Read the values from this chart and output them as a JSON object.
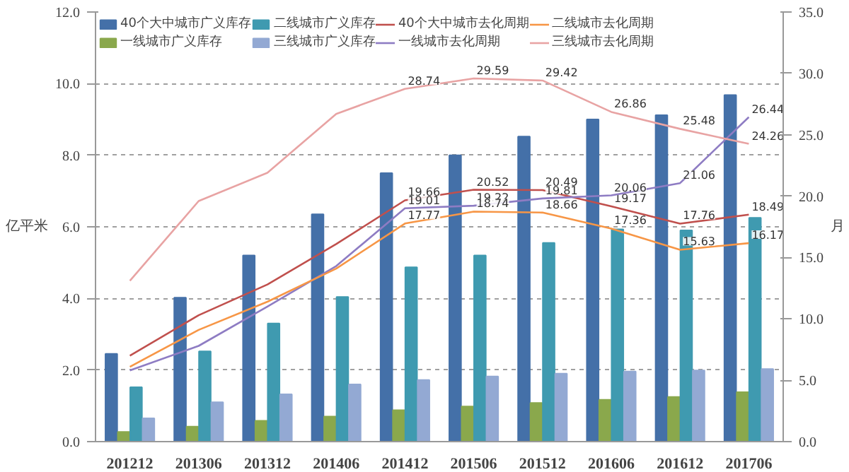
{
  "chart_data": {
    "type": "bar",
    "ylabel": "亿平米",
    "y2label": "月",
    "categories": [
      "201212",
      "201306",
      "201312",
      "201406",
      "201412",
      "201506",
      "201512",
      "201606",
      "201612",
      "201706"
    ],
    "ylim": [
      0,
      12
    ],
    "yticks": [
      {
        "value": 0,
        "label": "0.0"
      },
      {
        "value": 2,
        "label": "2.0"
      },
      {
        "value": 4,
        "label": "4.0"
      },
      {
        "value": 6,
        "label": "6.0"
      },
      {
        "value": 8,
        "label": "8.0"
      },
      {
        "value": 10,
        "label": "10.0"
      },
      {
        "value": 12,
        "label": "12.0"
      }
    ],
    "y2lim": [
      0,
      35
    ],
    "y2ticks": [
      {
        "value": 0,
        "label": "0.0"
      },
      {
        "value": 5,
        "label": "5.0"
      },
      {
        "value": 10,
        "label": "10.0"
      },
      {
        "value": 15,
        "label": "15.0"
      },
      {
        "value": 20,
        "label": "20.0"
      },
      {
        "value": 25,
        "label": "25.0"
      },
      {
        "value": 30,
        "label": "30.0"
      },
      {
        "value": 35,
        "label": "35.0"
      }
    ],
    "grid": "y",
    "legend": "top",
    "series": [
      {
        "name": "40个大中城市广义库存",
        "color": "#4470a8",
        "values": [
          2.45,
          4.02,
          5.2,
          6.35,
          7.5,
          8.0,
          8.52,
          9.0,
          9.12,
          9.68
        ]
      },
      {
        "name": "一线城市广义库存",
        "color": "#8aa84c",
        "values": [
          0.27,
          0.42,
          0.58,
          0.7,
          0.88,
          0.98,
          1.08,
          1.17,
          1.25,
          1.38
        ]
      },
      {
        "name": "二线城市广义库存",
        "color": "#3f9ab0",
        "values": [
          1.52,
          2.52,
          3.3,
          4.04,
          4.87,
          5.2,
          5.55,
          5.93,
          5.9,
          6.25
        ]
      },
      {
        "name": "三线城市广义库存",
        "color": "#93a9d3",
        "values": [
          0.65,
          1.1,
          1.32,
          1.6,
          1.72,
          1.82,
          1.9,
          1.96,
          1.99,
          2.03
        ]
      },
      {
        "name": "40个大中城市去化周期",
        "type": "line",
        "axis": "y2",
        "color": "#c0504d",
        "values": [
          7.0,
          10.3,
          12.8,
          16.1,
          19.66,
          20.52,
          20.49,
          19.17,
          17.76,
          18.49
        ],
        "value_labels": [
          null,
          null,
          null,
          null,
          "19.66",
          "20.52",
          "20.49",
          "19.17",
          "17.76",
          "18.49"
        ]
      },
      {
        "name": "一线城市去化周期",
        "type": "line",
        "axis": "y2",
        "color": "#8e7cc3",
        "values": [
          5.8,
          7.8,
          11.0,
          14.3,
          19.01,
          19.22,
          19.81,
          20.06,
          21.06,
          26.44
        ],
        "value_labels": [
          null,
          null,
          null,
          null,
          "19.01",
          "19.22",
          "19.81",
          "20.06",
          "21.06",
          "26.44"
        ]
      },
      {
        "name": "二线城市去化周期",
        "type": "line",
        "axis": "y2",
        "color": "#f79646",
        "values": [
          6.1,
          9.1,
          11.4,
          14.1,
          17.77,
          18.74,
          18.66,
          17.36,
          15.63,
          16.17
        ],
        "value_labels": [
          null,
          null,
          null,
          null,
          "17.77",
          "18.74",
          "18.66",
          "17.36",
          "15.63",
          "16.17"
        ]
      },
      {
        "name": "三线城市去化周期",
        "type": "line",
        "axis": "y2",
        "color": "#e8a3a3",
        "values": [
          13.1,
          19.6,
          21.9,
          26.7,
          28.74,
          29.59,
          29.42,
          26.86,
          25.48,
          24.26
        ],
        "value_labels": [
          null,
          null,
          null,
          null,
          "28.74",
          "29.59",
          "29.42",
          "26.86",
          "25.48",
          "24.26"
        ]
      }
    ]
  }
}
